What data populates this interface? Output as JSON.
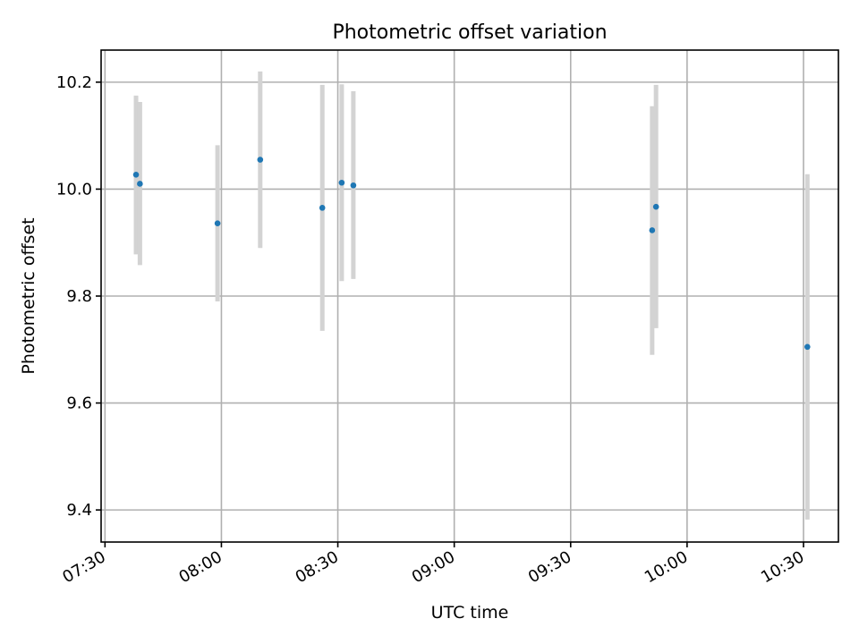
{
  "chart_data": {
    "type": "scatter",
    "title": "Photometric offset variation",
    "xlabel": "UTC time",
    "ylabel": "Photometric offset",
    "x_axis_type": "time",
    "xlim": [
      "07:29",
      "10:39"
    ],
    "ylim": [
      9.34,
      10.26
    ],
    "xticks": [
      "07:30",
      "08:00",
      "08:30",
      "09:00",
      "09:30",
      "10:00",
      "10:30"
    ],
    "yticks": [
      9.4,
      9.6,
      9.8,
      10.0,
      10.2
    ],
    "ytick_labels": [
      "9.4",
      "9.6",
      "9.8",
      "10.0",
      "10.2"
    ],
    "grid": true,
    "colors": {
      "points": "#1f77b4",
      "errorbars": "#d3d3d3"
    },
    "points": [
      {
        "x": "07:38",
        "y": 10.027,
        "err_low": 9.878,
        "err_high": 10.175
      },
      {
        "x": "07:39",
        "y": 10.01,
        "err_low": 9.858,
        "err_high": 10.163
      },
      {
        "x": "07:59",
        "y": 9.936,
        "err_low": 9.79,
        "err_high": 10.082
      },
      {
        "x": "08:10",
        "y": 10.055,
        "err_low": 9.89,
        "err_high": 10.22
      },
      {
        "x": "08:26",
        "y": 9.965,
        "err_low": 9.735,
        "err_high": 10.195
      },
      {
        "x": "08:31",
        "y": 10.012,
        "err_low": 9.828,
        "err_high": 10.196
      },
      {
        "x": "08:34",
        "y": 10.007,
        "err_low": 9.832,
        "err_high": 10.183
      },
      {
        "x": "09:51",
        "y": 9.923,
        "err_low": 9.69,
        "err_high": 10.155
      },
      {
        "x": "09:52",
        "y": 9.967,
        "err_low": 9.74,
        "err_high": 10.195
      },
      {
        "x": "10:31",
        "y": 9.705,
        "err_low": 9.382,
        "err_high": 10.028
      }
    ]
  }
}
